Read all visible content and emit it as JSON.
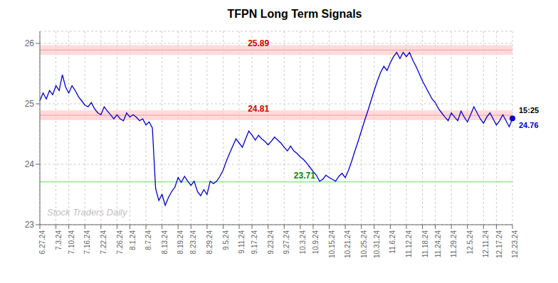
{
  "chart_data": {
    "type": "line",
    "title": "TFPN Long Term Signals",
    "categories": [
      "6.27.24",
      null,
      null,
      null,
      null,
      "7.3.24",
      null,
      null,
      null,
      "7.10.24",
      null,
      null,
      null,
      null,
      "7.16.24",
      null,
      null,
      null,
      null,
      "7.22.24",
      null,
      null,
      null,
      null,
      "7.26.24",
      null,
      null,
      null,
      "8.1.24",
      null,
      null,
      null,
      null,
      "8.7.24",
      null,
      null,
      null,
      null,
      "8.13.24",
      null,
      null,
      null,
      null,
      "8.19.24",
      null,
      null,
      null,
      "8.23.24",
      null,
      null,
      null,
      null,
      "8.29.24",
      null,
      null,
      null,
      null,
      "9.5.24",
      null,
      null,
      null,
      null,
      "9.11.24",
      null,
      null,
      null,
      "9.17.24",
      null,
      null,
      null,
      null,
      "9.23.24",
      null,
      null,
      null,
      null,
      "9.27.24",
      null,
      null,
      null,
      null,
      "10.3.24",
      null,
      null,
      null,
      "10.9.24",
      null,
      null,
      null,
      null,
      "10.15.24",
      null,
      null,
      null,
      null,
      "10.21.24",
      null,
      null,
      null,
      null,
      "10.25.24",
      null,
      null,
      null,
      "10.31.24",
      null,
      null,
      null,
      null,
      "11.6.24",
      null,
      null,
      null,
      null,
      "11.12.24",
      null,
      null,
      null,
      null,
      "11.18.24",
      null,
      null,
      null,
      "11.24.24",
      null,
      null,
      null,
      null,
      "11.29.24",
      null,
      null,
      null,
      null,
      "12.5.24",
      null,
      null,
      null,
      null,
      "12.11.24",
      null,
      null,
      null,
      "12.17.24",
      null,
      null,
      null,
      null,
      "12.23.24"
    ],
    "values": [
      25.05,
      25.18,
      25.08,
      25.22,
      25.15,
      25.3,
      25.22,
      25.48,
      25.28,
      25.18,
      25.3,
      25.22,
      25.12,
      25.05,
      24.98,
      24.95,
      25.02,
      24.92,
      24.85,
      24.82,
      24.95,
      24.88,
      24.82,
      24.75,
      24.82,
      24.75,
      24.72,
      24.85,
      24.78,
      24.82,
      24.78,
      24.72,
      24.75,
      24.65,
      24.7,
      24.6,
      23.6,
      23.4,
      23.5,
      23.32,
      23.45,
      23.55,
      23.62,
      23.78,
      23.7,
      23.8,
      23.72,
      23.65,
      23.72,
      23.55,
      23.48,
      23.58,
      23.5,
      23.72,
      23.68,
      23.72,
      23.8,
      23.9,
      24.05,
      24.18,
      24.3,
      24.42,
      24.35,
      24.28,
      24.42,
      24.55,
      24.48,
      24.4,
      24.48,
      24.42,
      24.38,
      24.32,
      24.38,
      24.45,
      24.4,
      24.35,
      24.28,
      24.22,
      24.3,
      24.22,
      24.18,
      24.12,
      24.08,
      24.02,
      23.95,
      23.88,
      23.82,
      23.72,
      23.75,
      23.82,
      23.78,
      23.75,
      23.72,
      23.8,
      23.85,
      23.78,
      23.9,
      24.05,
      24.22,
      24.38,
      24.55,
      24.72,
      24.88,
      25.05,
      25.22,
      25.38,
      25.52,
      25.62,
      25.55,
      25.68,
      25.78,
      25.85,
      25.75,
      25.85,
      25.78,
      25.85,
      25.72,
      25.62,
      25.5,
      25.38,
      25.28,
      25.18,
      25.08,
      25.02,
      24.92,
      24.85,
      24.78,
      24.72,
      24.85,
      24.78,
      24.72,
      24.88,
      24.78,
      24.7,
      24.82,
      24.95,
      24.85,
      24.75,
      24.68,
      24.78,
      24.85,
      24.75,
      24.65,
      24.72,
      24.82,
      24.72,
      24.62,
      24.76
    ],
    "color": "#0000CC",
    "ylim": [
      23.0,
      26.2
    ],
    "yticks": [
      23,
      24,
      25,
      26
    ],
    "grid": true,
    "reference_lines": [
      {
        "value": 25.89,
        "color": "#FF9999",
        "label_color": "#CC0000",
        "band": [
          25.81,
          25.97
        ],
        "band_color": "#FFCCCC"
      },
      {
        "value": 24.81,
        "color": "#FF9999",
        "label_color": "#CC0000",
        "band": [
          24.73,
          24.89
        ],
        "band_color": "#FFCCCC"
      },
      {
        "value": 23.71,
        "color": "#90EE90",
        "label_color": "#008800"
      }
    ],
    "last_point": {
      "value": 24.76,
      "label": "15:25"
    },
    "watermark": "Stock Traders Daily",
    "watermark_color": "#c0c0c0"
  }
}
